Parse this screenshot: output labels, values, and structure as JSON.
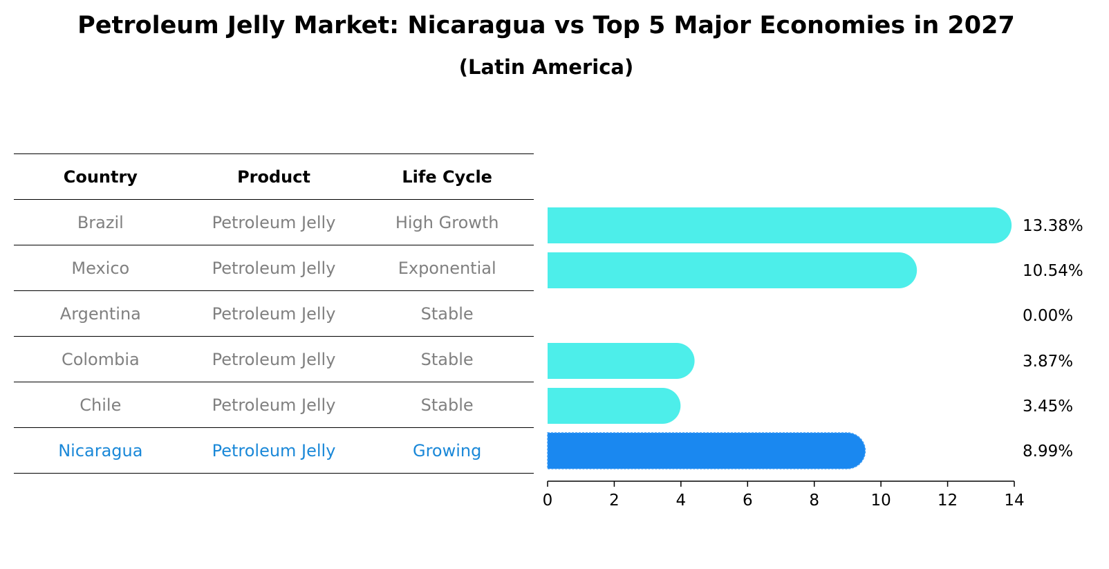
{
  "title": "Petroleum Jelly Market: Nicaragua vs Top 5 Major Economies in 2027",
  "subtitle": "(Latin America)",
  "table": {
    "headers": [
      "Country",
      "Product",
      "Life Cycle"
    ],
    "rows": [
      {
        "country": "Brazil",
        "product": "Petroleum Jelly",
        "life_cycle": "High Growth"
      },
      {
        "country": "Mexico",
        "product": "Petroleum Jelly",
        "life_cycle": "Exponential"
      },
      {
        "country": "Argentina",
        "product": "Petroleum Jelly",
        "life_cycle": "Stable"
      },
      {
        "country": "Colombia",
        "product": "Petroleum Jelly",
        "life_cycle": "Stable"
      },
      {
        "country": "Chile",
        "product": "Petroleum Jelly",
        "life_cycle": "Stable"
      },
      {
        "country": "Nicaragua",
        "product": "Petroleum Jelly",
        "life_cycle": "Growing"
      }
    ]
  },
  "colors": {
    "bar": "#4deeea",
    "highlight_bar": "#1a88f0",
    "highlight_text": "#1a88d8",
    "muted_text": "#808080"
  },
  "chart_data": {
    "type": "bar",
    "orientation": "horizontal",
    "title": "Petroleum Jelly Market: Nicaragua vs Top 5 Major Economies in 2027",
    "subtitle": "(Latin America)",
    "categories": [
      "Brazil",
      "Mexico",
      "Argentina",
      "Colombia",
      "Chile",
      "Nicaragua"
    ],
    "values": [
      13.38,
      10.54,
      0.0,
      3.87,
      3.45,
      8.99
    ],
    "value_labels": [
      "13.38%",
      "10.54%",
      "0.00%",
      "3.87%",
      "3.45%",
      "8.99%"
    ],
    "highlight": "Nicaragua",
    "xlim": [
      0,
      14
    ],
    "xticks": [
      "0",
      "2",
      "4",
      "6",
      "8",
      "10",
      "12",
      "14"
    ],
    "xlabel": "",
    "ylabel": "",
    "grid": false
  }
}
